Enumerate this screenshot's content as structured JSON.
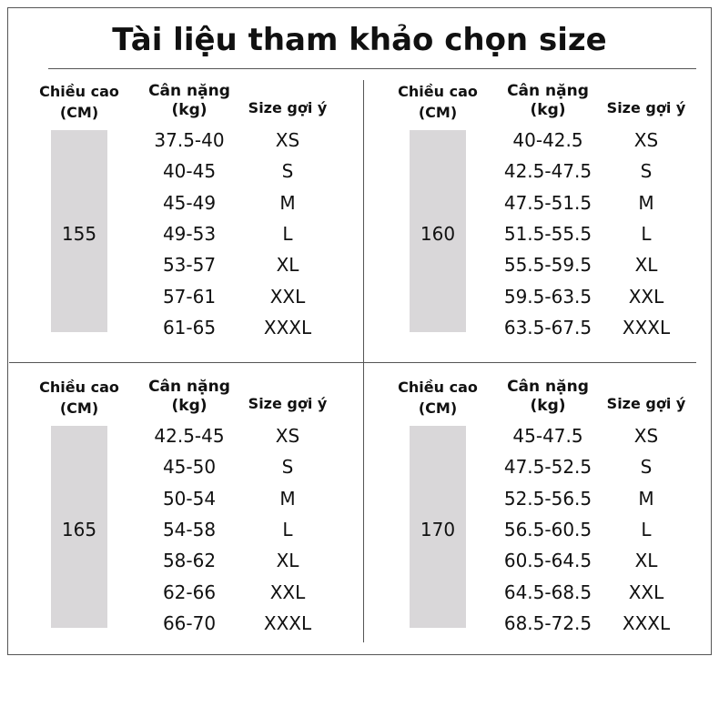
{
  "title": "Tài liệu tham khảo chọn size",
  "panels": [
    {
      "headers": {
        "height": [
          "Chiều cao",
          "(CM)"
        ],
        "weight": [
          "Cân nặng",
          "(kg)"
        ],
        "size": "Size gợi ý"
      },
      "height": "155",
      "rows": [
        [
          "37.5-40",
          "XS"
        ],
        [
          "40-45",
          "S"
        ],
        [
          "45-49",
          "M"
        ],
        [
          "49-53",
          "L"
        ],
        [
          "53-57",
          "XL"
        ],
        [
          "57-61",
          "XXL"
        ],
        [
          "61-65",
          "XXXL"
        ]
      ]
    },
    {
      "headers": {
        "height": [
          "Chiều cao",
          "(CM)"
        ],
        "weight": [
          "Cân nặng",
          "(kg)"
        ],
        "size": "Size gợi ý"
      },
      "height": "160",
      "rows": [
        [
          "40-42.5",
          "XS"
        ],
        [
          "42.5-47.5",
          "S"
        ],
        [
          "47.5-51.5",
          "M"
        ],
        [
          "51.5-55.5",
          "L"
        ],
        [
          "55.5-59.5",
          "XL"
        ],
        [
          "59.5-63.5",
          "XXL"
        ],
        [
          "63.5-67.5",
          "XXXL"
        ]
      ]
    },
    {
      "headers": {
        "height": [
          "Chiều cao",
          "(CM)"
        ],
        "weight": [
          "Cân nặng",
          "(kg)"
        ],
        "size": "Size gợi ý"
      },
      "height": "165",
      "rows": [
        [
          "42.5-45",
          "XS"
        ],
        [
          "45-50",
          "S"
        ],
        [
          "50-54",
          "M"
        ],
        [
          "54-58",
          "L"
        ],
        [
          "58-62",
          "XL"
        ],
        [
          "62-66",
          "XXL"
        ],
        [
          "66-70",
          "XXXL"
        ]
      ]
    },
    {
      "headers": {
        "height": [
          "Chiều cao",
          "(CM)"
        ],
        "weight": [
          "Cân nặng",
          "(kg)"
        ],
        "size": "Size gợi ý"
      },
      "height": "170",
      "rows": [
        [
          "45-47.5",
          "XS"
        ],
        [
          "47.5-52.5",
          "S"
        ],
        [
          "52.5-56.5",
          "M"
        ],
        [
          "56.5-60.5",
          "L"
        ],
        [
          "60.5-64.5",
          "XL"
        ],
        [
          "64.5-68.5",
          "XXL"
        ],
        [
          "68.5-72.5",
          "XXXL"
        ]
      ]
    }
  ]
}
